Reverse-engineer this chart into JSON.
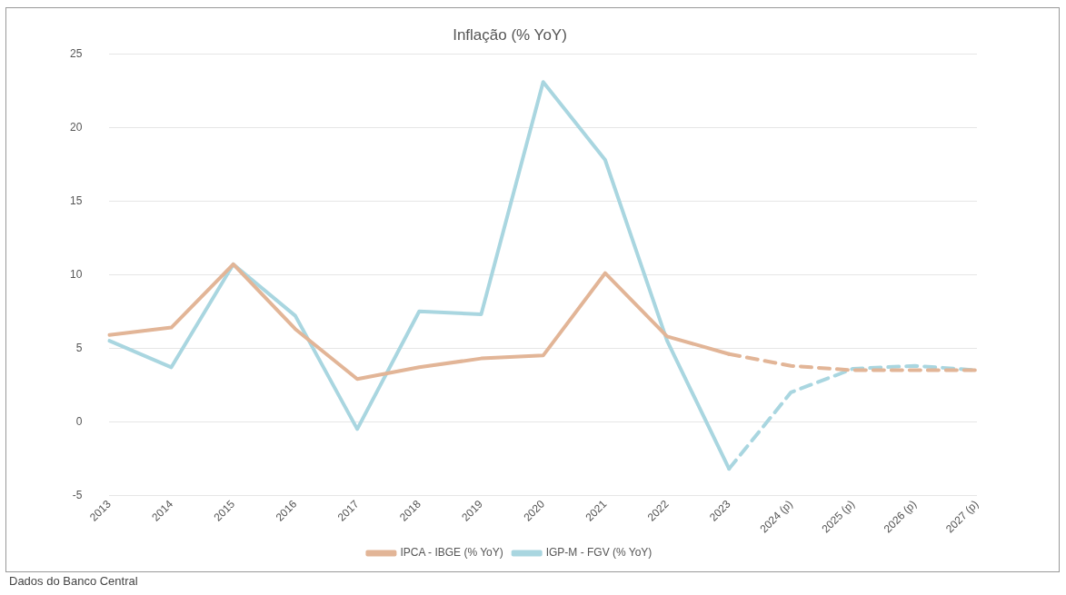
{
  "chart_data": {
    "type": "line",
    "title": "Inflação (% YoY)",
    "categories": [
      "2013",
      "2014",
      "2015",
      "2016",
      "2017",
      "2018",
      "2019",
      "2020",
      "2021",
      "2022",
      "2023",
      "2024 (p)",
      "2025 (p)",
      "2026 (p)",
      "2027 (p)"
    ],
    "series": [
      {
        "name": "IPCA - IBGE (% YoY)",
        "color": "#e2b597",
        "line_style": "solid",
        "values": [
          5.9,
          6.4,
          10.7,
          6.3,
          2.9,
          3.7,
          4.3,
          4.5,
          10.1,
          5.8,
          4.6,
          null,
          null,
          null,
          null
        ]
      },
      {
        "name": "IGP-M - FGV (% YoY)",
        "color": "#a9d6e0",
        "line_style": "solid",
        "values": [
          5.5,
          3.7,
          10.7,
          7.2,
          -0.5,
          7.5,
          7.3,
          23.1,
          17.8,
          5.5,
          -3.2,
          null,
          null,
          null,
          null
        ]
      },
      {
        "color": "#e2b597",
        "line_style": "dashed",
        "values": [
          null,
          null,
          null,
          null,
          null,
          null,
          null,
          null,
          null,
          null,
          4.6,
          3.8,
          3.5,
          3.5,
          3.5
        ]
      },
      {
        "color": "#a9d6e0",
        "line_style": "dashed",
        "values": [
          null,
          null,
          null,
          null,
          null,
          null,
          null,
          null,
          null,
          null,
          -3.2,
          2.0,
          3.6,
          3.8,
          3.5
        ]
      }
    ],
    "ylim": [
      -5,
      25
    ],
    "yticks": [
      -5,
      0,
      5,
      10,
      15,
      20,
      25
    ],
    "grid": "y",
    "legend": "bottom",
    "marker": "none",
    "annotations": [
      "Dados do Banco Central"
    ]
  }
}
